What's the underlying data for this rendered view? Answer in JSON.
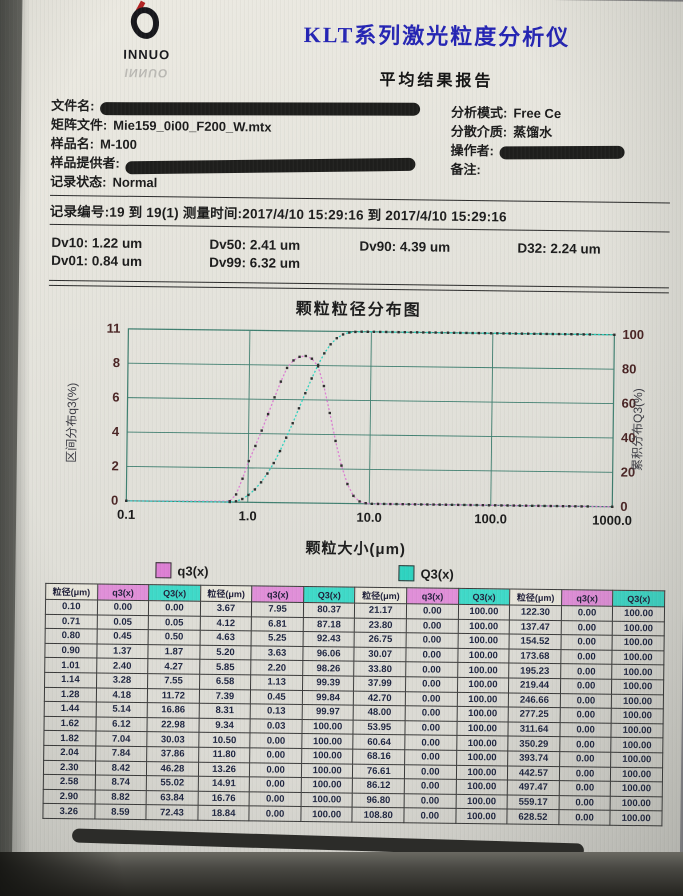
{
  "page": {
    "brand": {
      "logo_text": "INNUO",
      "logo_reflect": "INNUO",
      "title": "KLT系列激光粒度分析仪",
      "subtitle": "平均结果报告"
    },
    "info": {
      "left": [
        {
          "name": "file-name",
          "label": "文件名:",
          "value": "",
          "redacted": true,
          "redact_class": "w-file"
        },
        {
          "name": "matrix-file",
          "label": "矩阵文件:",
          "value": "Mie159_0i00_F200_W.mtx"
        },
        {
          "name": "sample-name",
          "label": "样品名:",
          "value": "M-100"
        },
        {
          "name": "sample-provider",
          "label": "样品提供者:",
          "value": "",
          "redacted": true,
          "redact_class": "w-provider"
        },
        {
          "name": "record-status",
          "label": "记录状态:",
          "value": "Normal"
        }
      ],
      "right": [
        {
          "name": "analysis-mode",
          "label": "分析模式:",
          "value": "Free Ce"
        },
        {
          "name": "dispersant",
          "label": "分散介质:",
          "value": "蒸馏水"
        },
        {
          "name": "operator",
          "label": "操作者:",
          "value": "",
          "redacted": true,
          "redact_class": "w-operator"
        },
        {
          "name": "remark",
          "label": "备注:",
          "value": ""
        }
      ]
    },
    "record_line": "记录编号:19  到  19(1)  测量时间:2017/4/10 15:29:16  到  2017/4/10 15:29:16",
    "dv_values": [
      {
        "label": "Dv10:",
        "value": "1.22 um"
      },
      {
        "label": "Dv50:",
        "value": "2.41 um"
      },
      {
        "label": "Dv90:",
        "value": "4.39 um"
      },
      {
        "label": "D32:",
        "value": "2.24 um"
      },
      {
        "label": "Dv01:",
        "value": "0.84 um"
      },
      {
        "label": "Dv99:",
        "value": "6.32 um"
      }
    ]
  },
  "chart_data": {
    "type": "line",
    "title": "颗粒粒径分布图",
    "xlabel": "颗粒大小(μm)",
    "ylabel_left": "区间分布q3(%)",
    "ylabel_right": "累积分布Q3(%)",
    "x_scale": "log",
    "xlim": [
      0.1,
      1000
    ],
    "xticks": [
      "0.1",
      "1.0",
      "10.0",
      "100.0",
      "1000.0"
    ],
    "xtick_values": [
      0.1,
      1,
      10,
      100,
      1000
    ],
    "ylim_left": [
      0,
      11
    ],
    "yticks_left": [
      0,
      2,
      4,
      6,
      8,
      11
    ],
    "ylim_right": [
      0,
      100
    ],
    "yticks_right": [
      0,
      20,
      40,
      60,
      80,
      100
    ],
    "grid": true,
    "legend": [
      {
        "label": "q3(x)",
        "color": "#dd7fd4"
      },
      {
        "label": "Q3(x)",
        "color": "#2ed3c0"
      }
    ],
    "x": [
      0.1,
      0.71,
      0.8,
      0.9,
      1.01,
      1.14,
      1.28,
      1.44,
      1.62,
      1.82,
      2.04,
      2.3,
      2.58,
      2.9,
      3.26,
      3.67,
      4.12,
      4.63,
      5.2,
      5.85,
      6.58,
      7.39,
      8.31,
      9.34,
      10.5,
      11.8,
      13.26,
      14.91,
      16.76,
      18.84,
      21.17,
      23.8,
      26.75,
      30.07,
      33.8,
      37.99,
      42.7,
      48.0,
      53.95,
      60.64,
      68.16,
      76.61,
      86.12,
      96.8,
      108.8,
      122.3,
      137.47,
      154.52,
      173.68,
      195.23,
      219.44,
      246.66,
      277.25,
      311.64,
      350.29,
      393.74,
      442.57,
      497.47,
      559.17,
      628.52,
      1000.0
    ],
    "series": [
      {
        "name": "q3(x)",
        "axis": "left",
        "color": "#dd7fd4",
        "values": [
          0.0,
          0.05,
          0.45,
          1.37,
          2.4,
          3.28,
          4.18,
          5.14,
          6.12,
          7.04,
          7.84,
          8.42,
          8.74,
          8.82,
          8.59,
          7.95,
          6.81,
          5.25,
          3.63,
          2.2,
          1.13,
          0.45,
          0.13,
          0.03,
          0.0,
          0.0,
          0.0,
          0.0,
          0.0,
          0.0,
          0.0,
          0.0,
          0.0,
          0.0,
          0.0,
          0.0,
          0.0,
          0.0,
          0.0,
          0.0,
          0.0,
          0.0,
          0.0,
          0.0,
          0.0,
          0.0,
          0.0,
          0.0,
          0.0,
          0.0,
          0.0,
          0.0,
          0.0,
          0.0,
          0.0,
          0.0,
          0.0,
          0.0,
          0.0,
          0.0,
          0.0
        ]
      },
      {
        "name": "Q3(x)",
        "axis": "right",
        "color": "#2ed3c0",
        "values": [
          0.0,
          0.05,
          0.5,
          1.87,
          4.27,
          7.55,
          11.72,
          16.86,
          22.98,
          30.03,
          37.86,
          46.28,
          55.02,
          63.84,
          72.43,
          80.37,
          87.18,
          92.43,
          96.06,
          98.26,
          99.39,
          99.84,
          99.97,
          100.0,
          100.0,
          100.0,
          100.0,
          100.0,
          100.0,
          100.0,
          100.0,
          100.0,
          100.0,
          100.0,
          100.0,
          100.0,
          100.0,
          100.0,
          100.0,
          100.0,
          100.0,
          100.0,
          100.0,
          100.0,
          100.0,
          100.0,
          100.0,
          100.0,
          100.0,
          100.0,
          100.0,
          100.0,
          100.0,
          100.0,
          100.0,
          100.0,
          100.0,
          100.0,
          100.0,
          100.0,
          100.0
        ]
      }
    ]
  },
  "table": {
    "headers": [
      {
        "label": "粒径(μm)",
        "type": "size"
      },
      {
        "label": "q3(x)",
        "type": "q3"
      },
      {
        "label": "Q3(x)",
        "type": "Q3"
      },
      {
        "label": "粒径(μm)",
        "type": "size"
      },
      {
        "label": "q3(x)",
        "type": "q3"
      },
      {
        "label": "Q3(x)",
        "type": "Q3"
      },
      {
        "label": "粒径(μm)",
        "type": "size"
      },
      {
        "label": "q3(x)",
        "type": "q3"
      },
      {
        "label": "Q3(x)",
        "type": "Q3"
      },
      {
        "label": "粒径(μm)",
        "type": "size"
      },
      {
        "label": "q3(x)",
        "type": "q3"
      },
      {
        "label": "Q3(x)",
        "type": "Q3"
      }
    ],
    "rows": [
      [
        "0.10",
        "0.00",
        "0.00",
        "3.67",
        "7.95",
        "80.37",
        "21.17",
        "0.00",
        "100.00",
        "122.30",
        "0.00",
        "100.00"
      ],
      [
        "0.71",
        "0.05",
        "0.05",
        "4.12",
        "6.81",
        "87.18",
        "23.80",
        "0.00",
        "100.00",
        "137.47",
        "0.00",
        "100.00"
      ],
      [
        "0.80",
        "0.45",
        "0.50",
        "4.63",
        "5.25",
        "92.43",
        "26.75",
        "0.00",
        "100.00",
        "154.52",
        "0.00",
        "100.00"
      ],
      [
        "0.90",
        "1.37",
        "1.87",
        "5.20",
        "3.63",
        "96.06",
        "30.07",
        "0.00",
        "100.00",
        "173.68",
        "0.00",
        "100.00"
      ],
      [
        "1.01",
        "2.40",
        "4.27",
        "5.85",
        "2.20",
        "98.26",
        "33.80",
        "0.00",
        "100.00",
        "195.23",
        "0.00",
        "100.00"
      ],
      [
        "1.14",
        "3.28",
        "7.55",
        "6.58",
        "1.13",
        "99.39",
        "37.99",
        "0.00",
        "100.00",
        "219.44",
        "0.00",
        "100.00"
      ],
      [
        "1.28",
        "4.18",
        "11.72",
        "7.39",
        "0.45",
        "99.84",
        "42.70",
        "0.00",
        "100.00",
        "246.66",
        "0.00",
        "100.00"
      ],
      [
        "1.44",
        "5.14",
        "16.86",
        "8.31",
        "0.13",
        "99.97",
        "48.00",
        "0.00",
        "100.00",
        "277.25",
        "0.00",
        "100.00"
      ],
      [
        "1.62",
        "6.12",
        "22.98",
        "9.34",
        "0.03",
        "100.00",
        "53.95",
        "0.00",
        "100.00",
        "311.64",
        "0.00",
        "100.00"
      ],
      [
        "1.82",
        "7.04",
        "30.03",
        "10.50",
        "0.00",
        "100.00",
        "60.64",
        "0.00",
        "100.00",
        "350.29",
        "0.00",
        "100.00"
      ],
      [
        "2.04",
        "7.84",
        "37.86",
        "11.80",
        "0.00",
        "100.00",
        "68.16",
        "0.00",
        "100.00",
        "393.74",
        "0.00",
        "100.00"
      ],
      [
        "2.30",
        "8.42",
        "46.28",
        "13.26",
        "0.00",
        "100.00",
        "76.61",
        "0.00",
        "100.00",
        "442.57",
        "0.00",
        "100.00"
      ],
      [
        "2.58",
        "8.74",
        "55.02",
        "14.91",
        "0.00",
        "100.00",
        "86.12",
        "0.00",
        "100.00",
        "497.47",
        "0.00",
        "100.00"
      ],
      [
        "2.90",
        "8.82",
        "63.84",
        "16.76",
        "0.00",
        "100.00",
        "96.80",
        "0.00",
        "100.00",
        "559.17",
        "0.00",
        "100.00"
      ],
      [
        "3.26",
        "8.59",
        "72.43",
        "18.84",
        "0.00",
        "100.00",
        "108.80",
        "0.00",
        "100.00",
        "628.52",
        "0.00",
        "100.00"
      ]
    ]
  },
  "colors": {
    "title_blue": "#2424b4",
    "header_pink": "#e08fd8",
    "header_cyan": "#3fd9c8",
    "grid_green": "#3f7f70",
    "q3_pink": "#dd7fd4",
    "Q3_cyan": "#2ed3c0",
    "tick_maroon": "#4a2424"
  }
}
